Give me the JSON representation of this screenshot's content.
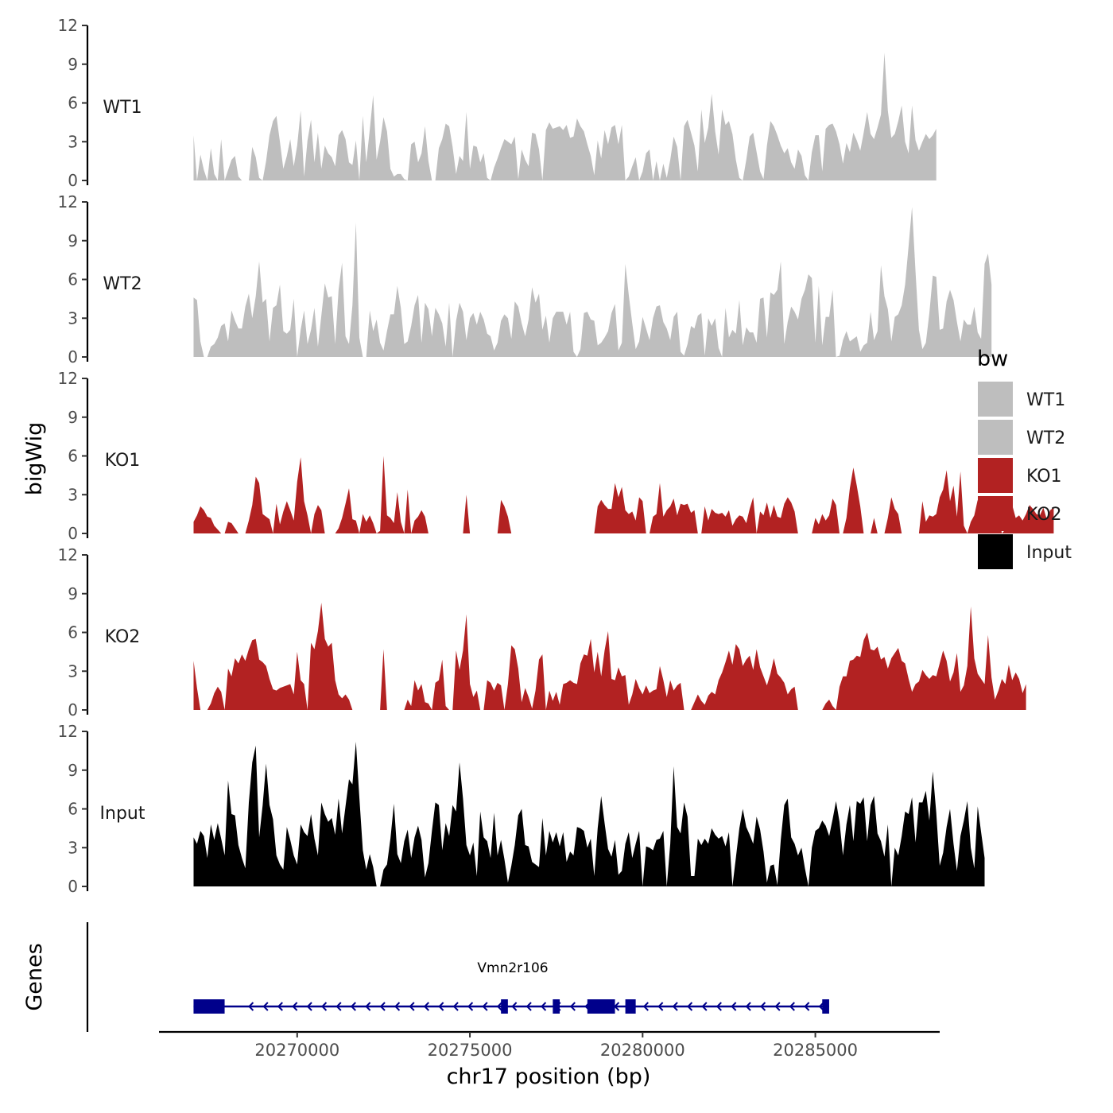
{
  "chart_data": {
    "type": "area",
    "ylabel": "bigWig",
    "xlabel": "chr17 position (bp)",
    "genes_label": "Genes",
    "xlim": [
      20266000,
      20288600
    ],
    "x_ticks": [
      20270000,
      20275000,
      20280000,
      20285000
    ],
    "x_tick_labels": [
      "20270000",
      "20275000",
      "20280000",
      "20285000"
    ],
    "ylim": [
      0,
      12
    ],
    "y_ticks": [
      0,
      3,
      6,
      9,
      12
    ],
    "y_tick_labels": [
      "0",
      "3",
      "6",
      "9",
      "12"
    ],
    "track_start": 20267000,
    "track_step": 100,
    "series": [
      {
        "name": "WT1",
        "color": "#BEBEBE",
        "values": [
          3.5,
          0.0,
          2.0,
          0.8,
          0.0,
          2.5,
          0.5,
          0.0,
          3.2,
          0.0,
          0.8,
          1.6,
          1.9,
          0.3,
          0.0,
          0.0,
          0.0,
          2.6,
          1.8,
          0.2,
          0.0,
          1.5,
          3.5,
          4.6,
          5.0,
          3.0,
          0.9,
          1.9,
          3.2,
          1.1,
          2.7,
          5.4,
          0.3,
          3.1,
          4.7,
          1.4,
          3.7,
          0.9,
          2.7,
          2.1,
          1.8,
          1.1,
          3.5,
          3.9,
          3.2,
          1.4,
          1.2,
          3.1,
          0.0,
          5.0,
          1.4,
          3.9,
          6.6,
          1.6,
          3.0,
          4.9,
          3.8,
          0.9,
          0.3,
          0.5,
          0.5,
          0.1,
          0.0,
          2.8,
          3.0,
          1.4,
          2.1,
          4.2,
          1.5,
          0.0,
          0.0,
          2.5,
          3.2,
          4.4,
          4.2,
          2.6,
          0.5,
          1.9,
          1.5,
          5.3,
          0.9,
          2.7,
          2.6,
          1.4,
          2.1,
          0.2,
          0.0,
          1.0,
          1.7,
          2.5,
          3.2,
          3.0,
          2.8,
          3.4,
          0.1,
          2.4,
          1.6,
          1.1,
          3.7,
          3.6,
          2.4,
          0.0,
          3.9,
          4.5,
          4.0,
          4.1,
          4.2,
          3.9,
          4.3,
          3.3,
          3.4,
          4.8,
          4.2,
          3.8,
          2.8,
          1.9,
          0.4,
          3.1,
          1.7,
          3.9,
          2.8,
          4.1,
          4.3,
          2.8,
          4.3,
          0.0,
          0.3,
          1.1,
          1.8,
          0.0,
          0.7,
          2.1,
          2.4,
          0.0,
          1.5,
          0.0,
          1.3,
          0.2,
          1.6,
          3.4,
          2.6,
          0.0,
          4.2,
          4.7,
          3.7,
          2.7,
          0.7,
          5.5,
          2.9,
          4.1,
          6.7,
          3.8,
          2.0,
          5.5,
          4.3,
          4.6,
          3.6,
          1.6,
          0.2,
          0.0,
          1.6,
          3.4,
          3.7,
          2.2,
          0.7,
          0.1,
          2.7,
          4.6,
          4.2,
          3.5,
          2.7,
          2.1,
          2.5,
          1.4,
          0.9,
          2.4,
          1.9,
          0.4,
          0.0,
          2.2,
          3.5,
          3.5,
          0.7,
          4.0,
          4.3,
          4.4,
          3.8,
          2.8,
          1.3,
          2.9,
          2.2,
          3.7,
          3.1,
          2.3,
          3.7,
          5.3,
          3.6,
          3.2,
          4.1,
          5.1,
          9.9,
          5.4,
          3.3,
          3.6,
          4.6,
          5.8,
          3.0,
          2.1,
          5.8,
          3.1,
          2.3,
          3.0,
          3.6,
          3.2,
          3.5,
          4.0
        ]
      },
      {
        "name": "WT2",
        "color": "#BEBEBE",
        "values": [
          4.6,
          4.4,
          1.2,
          0.0,
          0.0,
          0.8,
          1.0,
          1.5,
          2.4,
          2.6,
          1.2,
          3.6,
          2.8,
          2.2,
          2.2,
          3.9,
          4.9,
          3.0,
          4.7,
          7.4,
          4.2,
          4.5,
          1.2,
          3.8,
          4.0,
          5.6,
          2.0,
          1.8,
          2.1,
          4.5,
          0.0,
          2.1,
          3.6,
          1.0,
          2.1,
          3.8,
          0.8,
          3.2,
          5.7,
          4.6,
          4.7,
          1.0,
          5.2,
          7.3,
          1.6,
          1.0,
          4.0,
          10.4,
          1.5,
          0.0,
          0.0,
          3.6,
          2.0,
          2.9,
          1.1,
          0.5,
          2.0,
          3.3,
          3.3,
          5.5,
          3.8,
          1.0,
          1.2,
          2.4,
          4.0,
          4.8,
          1.1,
          4.2,
          3.7,
          1.6,
          3.8,
          3.3,
          2.6,
          0.8,
          4.2,
          0.0,
          2.8,
          4.2,
          3.5,
          1.3,
          3.0,
          3.4,
          2.5,
          3.5,
          2.9,
          1.8,
          1.6,
          0.5,
          1.1,
          2.8,
          3.3,
          3.0,
          1.4,
          4.3,
          3.9,
          2.6,
          1.6,
          2.9,
          5.4,
          4.2,
          4.9,
          2.1,
          3.2,
          1.1,
          3.0,
          3.5,
          3.5,
          3.5,
          2.5,
          3.5,
          0.4,
          0.0,
          0.6,
          3.4,
          3.5,
          2.9,
          2.8,
          0.9,
          1.1,
          1.5,
          2.0,
          3.4,
          4.1,
          0.5,
          1.1,
          7.2,
          4.8,
          2.6,
          0.6,
          1.2,
          3.1,
          2.2,
          1.3,
          3.0,
          3.9,
          4.0,
          2.7,
          2.2,
          1.3,
          3.1,
          3.5,
          0.4,
          0.1,
          1.0,
          2.4,
          2.2,
          3.2,
          3.4,
          0.1,
          3.0,
          2.4,
          3.0,
          0.7,
          0.0,
          3.8,
          1.5,
          2.1,
          1.8,
          4.4,
          0.9,
          2.3,
          1.9,
          1.9,
          1.1,
          4.5,
          4.6,
          1.5,
          5.0,
          4.8,
          5.2,
          7.4,
          1.0,
          2.7,
          3.9,
          3.5,
          2.9,
          4.5,
          5.2,
          6.4,
          6.1,
          1.1,
          5.5,
          0.9,
          3.1,
          3.1,
          5.2,
          0.0,
          0.1,
          1.3,
          2.0,
          1.2,
          1.4,
          1.6,
          0.4,
          0.9,
          1.1,
          3.5,
          1.3,
          2.0,
          7.1,
          4.7,
          3.7,
          1.2,
          3.1,
          3.3,
          4.0,
          5.6,
          8.6,
          11.6,
          6.6,
          2.1,
          0.6,
          1.1,
          3.4,
          6.3,
          6.2,
          2.1,
          2.2,
          4.3,
          5.2,
          4.4,
          2.7,
          1.2,
          2.9,
          2.5,
          2.5,
          3.9,
          1.9,
          1.4,
          7.2,
          8.0,
          5.6
        ]
      },
      {
        "name": "KO1",
        "color": "#B22222",
        "values": [
          0.9,
          1.4,
          2.1,
          1.8,
          1.3,
          1.2,
          0.6,
          0.3,
          0.0,
          0.0,
          0.9,
          0.8,
          0.4,
          0.0,
          0.0,
          0.0,
          1.0,
          2.2,
          4.4,
          3.9,
          1.5,
          1.3,
          1.1,
          0.0,
          2.3,
          0.7,
          1.7,
          2.5,
          1.8,
          1.0,
          4.0,
          5.9,
          2.5,
          1.4,
          0.0,
          1.5,
          2.2,
          1.8,
          0.0,
          0.0,
          0.0,
          0.0,
          0.4,
          1.2,
          2.3,
          3.5,
          1.1,
          1.0,
          0.0,
          1.5,
          0.9,
          1.4,
          0.8,
          0.0,
          0.2,
          6.0,
          1.4,
          1.2,
          0.8,
          3.2,
          0.9,
          0.0,
          3.4,
          0.0,
          1.0,
          1.3,
          1.8,
          1.3,
          0.0,
          0.0,
          0.0,
          0.0,
          0.0,
          0.0,
          0.0,
          0.0,
          0.0,
          0.0,
          0.0,
          3.0,
          0.0,
          0.0,
          0.0,
          0.0,
          0.0,
          0.0,
          0.0,
          0.0,
          0.0,
          2.6,
          2.1,
          1.3,
          0.0,
          0.0,
          0.0,
          0.0,
          0.0,
          0.0,
          0.0,
          0.0,
          0.0,
          0.0,
          0.0,
          0.0,
          0.0,
          0.0,
          0.0,
          0.0,
          0.0,
          0.0,
          0.0,
          0.0,
          0.0,
          0.0,
          0.0,
          0.0,
          0.0,
          2.1,
          2.6,
          2.2,
          1.9,
          1.9,
          3.9,
          2.8,
          3.6,
          1.8,
          1.5,
          1.7,
          1.0,
          2.8,
          2.5,
          0.0,
          0.0,
          1.3,
          1.5,
          3.9,
          1.3,
          1.8,
          2.1,
          2.7,
          1.4,
          2.3,
          2.2,
          2.3,
          1.6,
          1.8,
          0.0,
          0.0,
          2.1,
          1.0,
          1.9,
          1.6,
          1.5,
          1.6,
          1.3,
          1.8,
          0.6,
          1.1,
          1.4,
          1.3,
          0.8,
          1.9,
          2.8,
          0.0,
          1.7,
          1.4,
          2.4,
          1.2,
          2.2,
          1.3,
          1.2,
          2.3,
          2.8,
          2.4,
          1.7,
          0.0,
          0.0,
          0.0,
          0.0,
          0.0,
          1.2,
          0.7,
          1.5,
          1.0,
          1.4,
          2.7,
          2.2,
          0.0,
          0.0,
          1.2,
          3.5,
          5.1,
          3.7,
          2.1,
          0.0,
          0.0,
          0.0,
          1.2,
          0.0,
          0.0,
          0.0,
          1.2,
          2.8,
          1.9,
          1.5,
          0.0,
          0.0,
          0.0,
          0.0,
          0.0,
          0.0,
          2.5,
          0.9,
          1.4,
          1.3,
          1.5,
          2.8,
          3.4,
          4.9,
          2.5,
          3.7,
          1.3,
          4.8,
          0.6,
          0.0,
          0.9,
          1.4,
          2.6,
          1.0,
          1.7,
          2.1,
          1.4,
          1.9,
          1.8,
          0.0,
          0.3,
          1.0,
          2.2,
          1.2,
          1.4,
          1.0,
          1.5,
          2.2,
          1.9,
          1.5,
          1.4,
          2.0,
          1.1,
          1.8,
          2.0
        ]
      },
      {
        "name": "KO2",
        "color": "#B22222",
        "values": [
          3.8,
          1.7,
          0.0,
          0.0,
          0.0,
          0.5,
          1.3,
          1.8,
          1.4,
          0.0,
          3.2,
          2.6,
          4.0,
          3.6,
          4.3,
          3.8,
          4.7,
          5.4,
          5.5,
          3.9,
          3.7,
          3.4,
          2.4,
          1.6,
          1.5,
          1.7,
          1.8,
          1.9,
          2.0,
          1.2,
          4.5,
          2.3,
          2.0,
          0.0,
          5.2,
          4.7,
          6.1,
          8.3,
          5.5,
          4.9,
          5.2,
          2.3,
          1.2,
          0.9,
          1.2,
          0.8,
          0.0,
          0.0,
          0.0,
          0.0,
          0.0,
          0.0,
          0.0,
          0.0,
          0.0,
          4.7,
          0.0,
          0.0,
          0.0,
          0.0,
          0.0,
          0.0,
          0.8,
          0.3,
          2.3,
          1.5,
          2.0,
          0.6,
          0.5,
          0.0,
          2.1,
          2.3,
          3.9,
          0.3,
          0.0,
          0.0,
          4.6,
          3.1,
          4.6,
          7.4,
          2.0,
          1.0,
          1.5,
          0.0,
          0.0,
          2.3,
          2.1,
          1.5,
          2.1,
          1.9,
          0.0,
          2.0,
          5.0,
          4.7,
          3.2,
          0.6,
          1.7,
          1.0,
          0.1,
          1.5,
          3.9,
          4.3,
          0.0,
          1.5,
          0.7,
          1.4,
          0.4,
          2.0,
          2.1,
          2.3,
          2.1,
          2.0,
          3.6,
          4.3,
          4.2,
          5.5,
          2.9,
          4.5,
          2.6,
          4.6,
          6.1,
          2.4,
          2.3,
          3.3,
          2.6,
          2.7,
          0.4,
          1.2,
          2.4,
          1.7,
          1.2,
          1.9,
          1.3,
          1.5,
          1.6,
          3.4,
          2.3,
          1.0,
          2.3,
          1.5,
          1.9,
          2.1,
          0.0,
          0.0,
          0.0,
          0.6,
          1.2,
          0.7,
          0.4,
          1.1,
          1.4,
          1.2,
          2.3,
          2.9,
          3.7,
          4.6,
          3.5,
          5.1,
          4.7,
          3.4,
          3.9,
          4.2,
          3.1,
          4.7,
          3.3,
          2.6,
          1.9,
          2.8,
          4.0,
          2.8,
          2.5,
          2.1,
          1.2,
          1.6,
          1.8,
          0.0,
          0.0,
          0.0,
          0.0,
          0.0,
          0.0,
          0.0,
          0.0,
          0.5,
          0.8,
          0.3,
          0.0,
          1.8,
          2.6,
          2.6,
          3.8,
          3.9,
          4.2,
          4.1,
          5.4,
          6.0,
          4.7,
          4.6,
          4.9,
          3.9,
          4.1,
          3.2,
          4.0,
          4.4,
          4.8,
          3.8,
          3.6,
          2.4,
          1.4,
          2.0,
          2.2,
          3.1,
          2.7,
          2.4,
          2.7,
          2.6,
          3.6,
          4.6,
          3.8,
          2.2,
          2.9,
          4.4,
          1.4,
          1.9,
          3.4,
          8.0,
          4.0,
          2.8,
          2.4,
          2.0,
          5.8,
          2.5,
          0.8,
          1.5,
          2.4,
          2.0,
          3.5,
          2.3,
          2.9,
          2.4,
          1.3,
          2.0
        ]
      },
      {
        "name": "Input",
        "color": "#000000",
        "values": [
          3.8,
          3.3,
          4.3,
          3.9,
          2.2,
          4.8,
          3.6,
          4.9,
          3.7,
          2.4,
          8.2,
          5.6,
          5.5,
          3.2,
          2.2,
          1.4,
          6.5,
          9.6,
          10.9,
          3.8,
          6.3,
          9.5,
          6.3,
          5.2,
          2.4,
          1.7,
          1.3,
          4.6,
          3.6,
          2.4,
          1.7,
          4.8,
          4.2,
          3.9,
          5.6,
          3.7,
          2.4,
          6.5,
          5.6,
          5.0,
          5.3,
          4.0,
          6.8,
          4.1,
          6.2,
          8.3,
          7.9,
          11.2,
          6.9,
          2.8,
          1.3,
          2.5,
          1.5,
          0.0,
          0.0,
          1.3,
          1.7,
          3.7,
          6.4,
          2.5,
          1.8,
          3.5,
          4.4,
          2.2,
          3.8,
          4.7,
          3.6,
          0.7,
          1.8,
          4.3,
          6.5,
          6.3,
          2.8,
          4.9,
          3.9,
          6.3,
          5.8,
          9.6,
          6.8,
          3.2,
          2.4,
          3.4,
          0.8,
          5.8,
          3.8,
          3.5,
          2.2,
          5.7,
          2.4,
          3.6,
          2.1,
          0.3,
          1.6,
          3.2,
          5.5,
          6.0,
          3.2,
          3.1,
          1.9,
          1.7,
          1.5,
          5.3,
          2.4,
          4.3,
          3.4,
          4.2,
          3.1,
          4.2,
          1.9,
          2.7,
          2.4,
          4.6,
          4.5,
          4.3,
          3.0,
          3.7,
          0.8,
          4.5,
          7.0,
          4.9,
          2.9,
          2.3,
          3.6,
          0.9,
          1.2,
          3.3,
          4.2,
          2.2,
          3.3,
          4.3,
          0.0,
          3.1,
          3.0,
          2.8,
          3.6,
          3.7,
          4.3,
          0.0,
          3.3,
          9.3,
          4.6,
          4.1,
          6.5,
          5.4,
          0.8,
          0.8,
          3.7,
          3.2,
          3.7,
          3.3,
          4.5,
          4.0,
          3.7,
          3.9,
          3.1,
          4.2,
          0.0,
          2.2,
          4.5,
          6.0,
          4.6,
          4.0,
          3.3,
          5.4,
          4.4,
          2.7,
          0.3,
          1.6,
          1.7,
          0.1,
          3.6,
          6.3,
          6.8,
          3.8,
          3.3,
          2.4,
          3.0,
          1.4,
          0.0,
          3.0,
          4.3,
          4.5,
          5.1,
          4.7,
          3.9,
          5.2,
          6.6,
          5.0,
          2.4,
          4.8,
          6.3,
          3.5,
          6.6,
          6.4,
          6.9,
          3.5,
          6.3,
          7.0,
          4.1,
          3.5,
          2.3,
          4.8,
          0.0,
          3.0,
          2.4,
          3.9,
          5.8,
          5.6,
          6.9,
          3.4,
          6.5,
          6.5,
          7.4,
          5.1,
          8.9,
          5.7,
          1.6,
          2.6,
          4.6,
          6.0,
          3.3,
          1.2,
          3.9,
          5.1,
          6.6,
          3.0,
          1.4,
          6.2,
          4.2,
          2.2
        ]
      }
    ],
    "legend": {
      "title": "bw",
      "entries": [
        {
          "label": "WT1",
          "color": "#BEBEBE"
        },
        {
          "label": "WT2",
          "color": "#BEBEBE"
        },
        {
          "label": "KO1",
          "color": "#B22222"
        },
        {
          "label": "KO2",
          "color": "#B22222"
        },
        {
          "label": "Input",
          "color": "#000000"
        }
      ]
    },
    "gene": {
      "name": "Vmn2r106",
      "color": "#00008B",
      "strand": "-",
      "start": 20267000,
      "end": 20285400,
      "exons": [
        [
          20267000,
          20267900
        ],
        [
          20275900,
          20276100
        ],
        [
          20277400,
          20277600
        ],
        [
          20278400,
          20279200
        ],
        [
          20279500,
          20279800
        ],
        [
          20285200,
          20285400
        ]
      ]
    }
  }
}
